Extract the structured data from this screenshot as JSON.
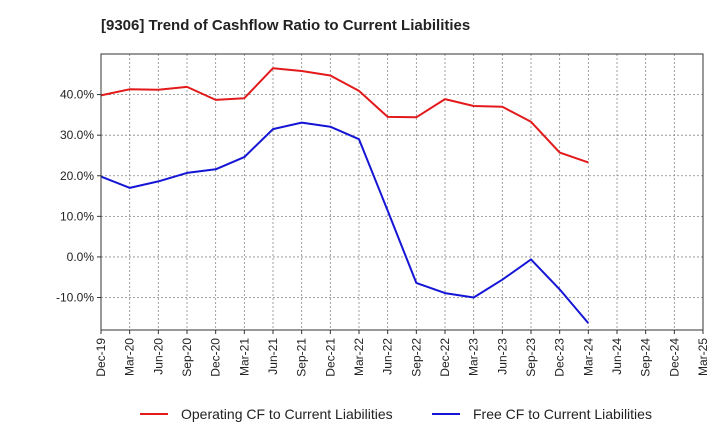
{
  "chart_data": {
    "type": "line",
    "title": "[9306]  Trend of Cashflow Ratio to Current Liabilities",
    "xlabel": "",
    "ylabel": "",
    "ylim": [
      -18,
      50
    ],
    "yticks": [
      -10,
      0,
      10,
      20,
      30,
      40
    ],
    "ytick_labels": [
      "-10.0%",
      "0.0%",
      "10.0%",
      "20.0%",
      "30.0%",
      "40.0%"
    ],
    "grid": true,
    "legend_position": "bottom",
    "categories": [
      "Dec-19",
      "Mar-20",
      "Jun-20",
      "Sep-20",
      "Dec-20",
      "Mar-21",
      "Jun-21",
      "Sep-21",
      "Dec-21",
      "Mar-22",
      "Jun-22",
      "Sep-22",
      "Dec-22",
      "Mar-23",
      "Jun-23",
      "Sep-23",
      "Dec-23",
      "Mar-24",
      "Jun-24",
      "Sep-24",
      "Dec-24",
      "Mar-25"
    ],
    "series": [
      {
        "name": "Operating CF to Current Liabilities",
        "color": "#e31a1c",
        "values": [
          39.8,
          41.3,
          41.2,
          41.9,
          38.7,
          39.1,
          46.5,
          45.8,
          44.7,
          40.9,
          34.5,
          34.4,
          38.9,
          37.2,
          37.0,
          33.3,
          25.7,
          23.3,
          null,
          null,
          null,
          null
        ]
      },
      {
        "name": "Free CF to Current Liabilities",
        "color": "#1515d6",
        "values": [
          19.8,
          17.0,
          18.6,
          20.7,
          21.6,
          24.6,
          31.5,
          33.1,
          32.1,
          29.0,
          11.4,
          -6.4,
          -8.9,
          -10.0,
          -5.6,
          -0.6,
          -8.0,
          -16.3,
          null,
          null,
          null,
          null
        ]
      }
    ]
  }
}
